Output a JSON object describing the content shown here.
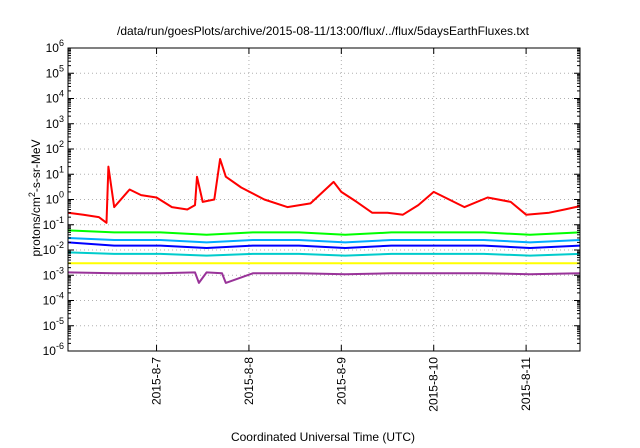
{
  "chart_data": {
    "type": "line",
    "title": "/data/run/goesPlots/archive/2015-08-11/13:00/flux/../flux/5daysEarthFluxes.txt",
    "xlabel": "Coordinated Universal Time (UTC)",
    "ylabel": "protons/cm²-s-sr-MeV",
    "ylabel_parts": {
      "prefix": "protons/cm",
      "superscript": "2",
      "suffix": "-s-sr-MeV"
    },
    "y_scale": "log",
    "ylim": [
      1e-06,
      1000000.0
    ],
    "y_ticks": [
      {
        "base": "10",
        "exp": "-6"
      },
      {
        "base": "10",
        "exp": "-5"
      },
      {
        "base": "10",
        "exp": "-4"
      },
      {
        "base": "10",
        "exp": "-3"
      },
      {
        "base": "10",
        "exp": "-2"
      },
      {
        "base": "10",
        "exp": "-1"
      },
      {
        "base": "10",
        "exp": "0"
      },
      {
        "base": "10",
        "exp": "1"
      },
      {
        "base": "10",
        "exp": "2"
      },
      {
        "base": "10",
        "exp": "3"
      },
      {
        "base": "10",
        "exp": "4"
      },
      {
        "base": "10",
        "exp": "5"
      },
      {
        "base": "10",
        "exp": "6"
      }
    ],
    "xlim": [
      "2015-08-06 01:00",
      "2015-08-11 14:00"
    ],
    "x_ticks": [
      "2015-8-7",
      "2015-8-8",
      "2015-8-9",
      "2015-8-10",
      "2015-8-11"
    ],
    "grid": true,
    "series": [
      {
        "color": "#ff0000",
        "x": [
          "2015-08-06 01:00",
          "2015-08-06 05:00",
          "2015-08-06 09:00",
          "2015-08-06 11:00",
          "2015-08-06 11:30",
          "2015-08-06 13:00",
          "2015-08-06 17:00",
          "2015-08-06 20:00",
          "2015-08-07 00:00",
          "2015-08-07 04:00",
          "2015-08-07 08:00",
          "2015-08-07 10:00",
          "2015-08-07 10:30",
          "2015-08-07 12:00",
          "2015-08-07 15:00",
          "2015-08-07 16:30",
          "2015-08-07 18:00",
          "2015-08-07 22:00",
          "2015-08-08 04:00",
          "2015-08-08 10:00",
          "2015-08-08 16:00",
          "2015-08-08 22:00",
          "2015-08-09 00:00",
          "2015-08-09 04:00",
          "2015-08-09 08:00",
          "2015-08-09 12:00",
          "2015-08-09 16:00",
          "2015-08-09 20:00",
          "2015-08-10 00:00",
          "2015-08-10 04:00",
          "2015-08-10 08:00",
          "2015-08-10 14:00",
          "2015-08-10 20:00",
          "2015-08-11 00:00",
          "2015-08-11 06:00",
          "2015-08-11 10:00",
          "2015-08-11 14:00"
        ],
        "values": [
          0.3,
          0.25,
          0.2,
          0.12,
          20,
          0.5,
          2.5,
          1.5,
          1.2,
          0.5,
          0.4,
          0.6,
          8,
          0.8,
          1.0,
          40,
          8,
          3,
          1.0,
          0.5,
          0.7,
          5,
          2,
          0.8,
          0.3,
          0.3,
          0.25,
          0.6,
          2,
          1.0,
          0.5,
          1.2,
          0.8,
          0.25,
          0.3,
          0.4,
          0.55
        ]
      },
      {
        "color": "#00ff00",
        "x": [
          "2015-08-06 01:00",
          "2015-08-06 13:00",
          "2015-08-07 01:00",
          "2015-08-07 13:00",
          "2015-08-08 01:00",
          "2015-08-08 13:00",
          "2015-08-09 01:00",
          "2015-08-09 13:00",
          "2015-08-10 01:00",
          "2015-08-10 13:00",
          "2015-08-11 01:00",
          "2015-08-11 14:00"
        ],
        "values": [
          0.06,
          0.05,
          0.05,
          0.04,
          0.05,
          0.05,
          0.04,
          0.05,
          0.05,
          0.05,
          0.04,
          0.05
        ]
      },
      {
        "color": "#00aaff",
        "x": [
          "2015-08-06 01:00",
          "2015-08-06 13:00",
          "2015-08-07 01:00",
          "2015-08-07 13:00",
          "2015-08-08 01:00",
          "2015-08-08 13:00",
          "2015-08-09 01:00",
          "2015-08-09 13:00",
          "2015-08-10 01:00",
          "2015-08-10 13:00",
          "2015-08-11 01:00",
          "2015-08-11 14:00"
        ],
        "values": [
          0.03,
          0.025,
          0.025,
          0.02,
          0.025,
          0.025,
          0.02,
          0.025,
          0.025,
          0.025,
          0.02,
          0.025
        ]
      },
      {
        "color": "#0000ff",
        "x": [
          "2015-08-06 01:00",
          "2015-08-06 13:00",
          "2015-08-07 01:00",
          "2015-08-07 13:00",
          "2015-08-08 01:00",
          "2015-08-08 13:00",
          "2015-08-09 01:00",
          "2015-08-09 13:00",
          "2015-08-10 01:00",
          "2015-08-10 13:00",
          "2015-08-11 01:00",
          "2015-08-11 14:00"
        ],
        "values": [
          0.02,
          0.015,
          0.015,
          0.012,
          0.015,
          0.015,
          0.012,
          0.015,
          0.015,
          0.015,
          0.012,
          0.015
        ]
      },
      {
        "color": "#00cccc",
        "x": [
          "2015-08-06 01:00",
          "2015-08-06 13:00",
          "2015-08-07 01:00",
          "2015-08-07 13:00",
          "2015-08-08 01:00",
          "2015-08-08 13:00",
          "2015-08-09 01:00",
          "2015-08-09 13:00",
          "2015-08-10 01:00",
          "2015-08-10 13:00",
          "2015-08-11 01:00",
          "2015-08-11 14:00"
        ],
        "values": [
          0.008,
          0.007,
          0.007,
          0.006,
          0.007,
          0.007,
          0.006,
          0.007,
          0.007,
          0.007,
          0.006,
          0.007
        ]
      },
      {
        "color": "#ffff00",
        "x": [
          "2015-08-06 01:00",
          "2015-08-06 13:00",
          "2015-08-07 01:00",
          "2015-08-07 13:00",
          "2015-08-08 01:00",
          "2015-08-08 13:00",
          "2015-08-09 01:00",
          "2015-08-09 13:00",
          "2015-08-10 01:00",
          "2015-08-10 13:00",
          "2015-08-11 01:00",
          "2015-08-11 14:00"
        ],
        "values": [
          0.003,
          0.003,
          0.003,
          0.003,
          0.003,
          0.003,
          0.003,
          0.003,
          0.003,
          0.003,
          0.003,
          0.003
        ]
      },
      {
        "color": "#993399",
        "x": [
          "2015-08-06 01:00",
          "2015-08-06 13:00",
          "2015-08-07 01:00",
          "2015-08-07 10:00",
          "2015-08-07 11:00",
          "2015-08-07 13:00",
          "2015-08-07 17:00",
          "2015-08-07 18:00",
          "2015-08-08 01:00",
          "2015-08-08 13:00",
          "2015-08-09 01:00",
          "2015-08-09 13:00",
          "2015-08-10 01:00",
          "2015-08-10 13:00",
          "2015-08-11 01:00",
          "2015-08-11 14:00"
        ],
        "values": [
          0.0013,
          0.0012,
          0.0012,
          0.0013,
          0.0005,
          0.0013,
          0.0012,
          0.0005,
          0.0012,
          0.0012,
          0.0011,
          0.0012,
          0.0012,
          0.0012,
          0.0011,
          0.0012
        ]
      }
    ]
  }
}
